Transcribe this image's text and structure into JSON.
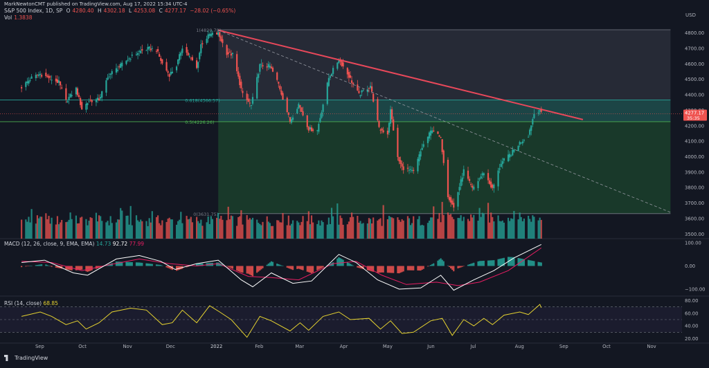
{
  "header": {
    "published": "MarkNewtonCMT published on TradingView.com, Aug 17, 2022 15:34 UTC-4",
    "symbol": "S&P 500 Index, 1D, SP",
    "ohlc": {
      "o_label": "O",
      "o": "4280.40",
      "h_label": "H",
      "h": "4302.18",
      "l_label": "L",
      "l": "4253.08",
      "c_label": "C",
      "c": "4277.17",
      "chg": "−28.02 (−0.65%)"
    },
    "vol_label": "Vol",
    "vol_value": "1.3838"
  },
  "logo_text": "TradingView",
  "colors": {
    "up": "#26a69a",
    "down": "#ef5350",
    "trendline": "#e8485a",
    "rsi": "#e6d330",
    "macd": "#ffffff",
    "signal": "#e91e63",
    "fib_top": "#2a2e39",
    "fib_mid": "#1e4a4a",
    "fib_bot": "#1b3d2b"
  },
  "chart_data": [
    {
      "type": "candlestick",
      "title": "S&P 500 Index, 1D, SP",
      "currency": "USD",
      "x_ticks": [
        "Sep",
        "Oct",
        "Nov",
        "Dec",
        "2022",
        "Feb",
        "Mar",
        "Apr",
        "May",
        "Jun",
        "Jul",
        "Aug",
        "Sep",
        "Oct",
        "Nov"
      ],
      "y_ticks": [
        "4800.00",
        "4700.00",
        "4600.00",
        "4500.00",
        "4400.00",
        "4300.00",
        "4200.00",
        "4100.00",
        "4000.00",
        "3900.00",
        "3800.00",
        "3700.00",
        "3600.00",
        "3500.00"
      ],
      "ylim": [
        3470,
        4870
      ],
      "last_price": "4277.17",
      "countdown": "35:35",
      "fib_levels": [
        {
          "label": "1(4820.78)",
          "value": 4820.78
        },
        {
          "label": "0.618(4366.57)",
          "value": 4366.57
        },
        {
          "label": "0.5(4226.26)",
          "value": 4226.26
        },
        {
          "label": "0(3631.75)",
          "value": 3631.75
        }
      ],
      "trendline": {
        "from": {
          "date": "2022-01-04",
          "value": 4818
        },
        "to": {
          "date": "2022-09-15",
          "value": 4240
        }
      },
      "dashed_line": {
        "from": {
          "date": "2022-01-04",
          "value": 4818
        },
        "to": {
          "date": "2022-11-15",
          "value": 3640
        }
      },
      "close_path": [
        [
          "2021-08-20",
          4450
        ],
        [
          "2021-08-27",
          4510
        ],
        [
          "2021-09-02",
          4535
        ],
        [
          "2021-09-08",
          4510
        ],
        [
          "2021-09-15",
          4480
        ],
        [
          "2021-09-20",
          4360
        ],
        [
          "2021-09-27",
          4440
        ],
        [
          "2021-10-01",
          4310
        ],
        [
          "2021-10-06",
          4360
        ],
        [
          "2021-10-13",
          4370
        ],
        [
          "2021-10-20",
          4530
        ],
        [
          "2021-10-27",
          4580
        ],
        [
          "2021-11-02",
          4630
        ],
        [
          "2021-11-10",
          4680
        ],
        [
          "2021-11-17",
          4700
        ],
        [
          "2021-11-22",
          4690
        ],
        [
          "2021-11-26",
          4600
        ],
        [
          "2021-12-01",
          4530
        ],
        [
          "2021-12-06",
          4590
        ],
        [
          "2021-12-10",
          4710
        ],
        [
          "2021-12-17",
          4620
        ],
        [
          "2021-12-20",
          4570
        ],
        [
          "2021-12-23",
          4725
        ],
        [
          "2021-12-29",
          4790
        ],
        [
          "2022-01-04",
          4795
        ],
        [
          "2022-01-10",
          4670
        ],
        [
          "2022-01-14",
          4660
        ],
        [
          "2022-01-21",
          4400
        ],
        [
          "2022-01-27",
          4330
        ],
        [
          "2022-02-02",
          4590
        ],
        [
          "2022-02-09",
          4585
        ],
        [
          "2022-02-15",
          4470
        ],
        [
          "2022-02-23",
          4230
        ],
        [
          "2022-03-01",
          4340
        ],
        [
          "2022-03-08",
          4180
        ],
        [
          "2022-03-14",
          4170
        ],
        [
          "2022-03-22",
          4510
        ],
        [
          "2022-03-29",
          4630
        ],
        [
          "2022-04-05",
          4520
        ],
        [
          "2022-04-12",
          4400
        ],
        [
          "2022-04-20",
          4460
        ],
        [
          "2022-04-26",
          4180
        ],
        [
          "2022-05-02",
          4150
        ],
        [
          "2022-05-04",
          4300
        ],
        [
          "2022-05-09",
          3990
        ],
        [
          "2022-05-12",
          3930
        ],
        [
          "2022-05-20",
          3900
        ],
        [
          "2022-05-26",
          4060
        ],
        [
          "2022-06-02",
          4180
        ],
        [
          "2022-06-08",
          4115
        ],
        [
          "2022-06-13",
          3750
        ],
        [
          "2022-06-17",
          3670
        ],
        [
          "2022-06-24",
          3910
        ],
        [
          "2022-06-30",
          3790
        ],
        [
          "2022-07-08",
          3900
        ],
        [
          "2022-07-14",
          3790
        ],
        [
          "2022-07-20",
          3960
        ],
        [
          "2022-07-27",
          4020
        ],
        [
          "2022-08-02",
          4090
        ],
        [
          "2022-08-08",
          4140
        ],
        [
          "2022-08-12",
          4280
        ],
        [
          "2022-08-16",
          4305
        ],
        [
          "2022-08-17",
          4277
        ]
      ]
    },
    {
      "type": "bar",
      "title": "Vol",
      "last_value": "1.3838",
      "note": "daily volume bars colored by candle direction"
    },
    {
      "type": "line",
      "title": "MACD (12, 26, close, 9, EMA, EMA)",
      "values_label": [
        "14.73",
        "92.72",
        "77.99"
      ],
      "y_ticks": [
        "100.00",
        "0.00",
        "−100.00"
      ],
      "ylim": [
        -130,
        115
      ],
      "macd_path": [
        [
          "2021-08-20",
          15
        ],
        [
          "2021-09-05",
          25
        ],
        [
          "2021-09-25",
          -30
        ],
        [
          "2021-10-05",
          -40
        ],
        [
          "2021-10-25",
          30
        ],
        [
          "2021-11-10",
          45
        ],
        [
          "2021-11-25",
          20
        ],
        [
          "2021-12-05",
          -15
        ],
        [
          "2021-12-20",
          10
        ],
        [
          "2022-01-04",
          25
        ],
        [
          "2022-01-20",
          -60
        ],
        [
          "2022-01-28",
          -90
        ],
        [
          "2022-02-10",
          -30
        ],
        [
          "2022-02-25",
          -75
        ],
        [
          "2022-03-10",
          -65
        ],
        [
          "2022-03-29",
          50
        ],
        [
          "2022-04-10",
          15
        ],
        [
          "2022-04-25",
          -60
        ],
        [
          "2022-05-10",
          -100
        ],
        [
          "2022-05-25",
          -95
        ],
        [
          "2022-06-08",
          -40
        ],
        [
          "2022-06-17",
          -105
        ],
        [
          "2022-07-01",
          -60
        ],
        [
          "2022-07-15",
          -20
        ],
        [
          "2022-07-29",
          35
        ],
        [
          "2022-08-17",
          93
        ]
      ],
      "signal_path": [
        [
          "2021-08-20",
          20
        ],
        [
          "2021-09-10",
          15
        ],
        [
          "2021-10-01",
          -20
        ],
        [
          "2021-10-20",
          5
        ],
        [
          "2021-11-10",
          30
        ],
        [
          "2021-12-01",
          10
        ],
        [
          "2021-12-20",
          0
        ],
        [
          "2022-01-04",
          10
        ],
        [
          "2022-01-25",
          -45
        ],
        [
          "2022-02-10",
          -50
        ],
        [
          "2022-03-01",
          -60
        ],
        [
          "2022-03-25",
          10
        ],
        [
          "2022-04-10",
          20
        ],
        [
          "2022-04-28",
          -40
        ],
        [
          "2022-05-15",
          -80
        ],
        [
          "2022-06-05",
          -70
        ],
        [
          "2022-06-20",
          -85
        ],
        [
          "2022-07-05",
          -70
        ],
        [
          "2022-07-25",
          -20
        ],
        [
          "2022-08-17",
          78
        ]
      ]
    },
    {
      "type": "line",
      "title": "RSI (14, close)",
      "last_value": "68.85",
      "y_ticks": [
        "80.00",
        "60.00",
        "40.00",
        "20.00"
      ],
      "ylim": [
        15,
        85
      ],
      "bands": [
        70,
        50,
        30
      ],
      "rsi_path": [
        [
          "2021-08-20",
          55
        ],
        [
          "2021-09-02",
          62
        ],
        [
          "2021-09-10",
          55
        ],
        [
          "2021-09-20",
          42
        ],
        [
          "2021-09-28",
          48
        ],
        [
          "2021-10-04",
          35
        ],
        [
          "2021-10-13",
          45
        ],
        [
          "2021-10-22",
          62
        ],
        [
          "2021-11-04",
          68
        ],
        [
          "2021-11-15",
          65
        ],
        [
          "2021-11-26",
          42
        ],
        [
          "2021-12-03",
          45
        ],
        [
          "2021-12-10",
          65
        ],
        [
          "2021-12-20",
          45
        ],
        [
          "2021-12-29",
          72
        ],
        [
          "2022-01-05",
          62
        ],
        [
          "2022-01-13",
          50
        ],
        [
          "2022-01-24",
          22
        ],
        [
          "2022-02-02",
          55
        ],
        [
          "2022-02-10",
          48
        ],
        [
          "2022-02-23",
          32
        ],
        [
          "2022-03-02",
          45
        ],
        [
          "2022-03-08",
          33
        ],
        [
          "2022-03-18",
          55
        ],
        [
          "2022-03-29",
          62
        ],
        [
          "2022-04-06",
          50
        ],
        [
          "2022-04-19",
          52
        ],
        [
          "2022-04-27",
          35
        ],
        [
          "2022-05-04",
          48
        ],
        [
          "2022-05-12",
          28
        ],
        [
          "2022-05-20",
          30
        ],
        [
          "2022-06-01",
          48
        ],
        [
          "2022-06-09",
          52
        ],
        [
          "2022-06-16",
          25
        ],
        [
          "2022-06-24",
          50
        ],
        [
          "2022-07-01",
          40
        ],
        [
          "2022-07-08",
          52
        ],
        [
          "2022-07-14",
          42
        ],
        [
          "2022-07-22",
          57
        ],
        [
          "2022-08-02",
          62
        ],
        [
          "2022-08-08",
          58
        ],
        [
          "2022-08-16",
          74
        ],
        [
          "2022-08-17",
          68.85
        ]
      ]
    }
  ]
}
